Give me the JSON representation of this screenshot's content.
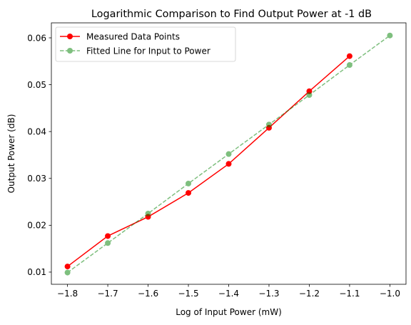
{
  "chart_data": {
    "type": "line",
    "title": "Logarithmic Comparison to Find Output Power at -1 dB",
    "xlabel": "Log of Input Power (mW)",
    "ylabel": "Output Power (dB)",
    "xlim": [
      -1.84,
      -0.96
    ],
    "ylim": [
      0.0074,
      0.0632
    ],
    "xticks": [
      -1.8,
      -1.7,
      -1.6,
      -1.5,
      -1.4,
      -1.3,
      -1.2,
      -1.1,
      -1.0
    ],
    "xtick_labels": [
      "−1.8",
      "−1.7",
      "−1.6",
      "−1.5",
      "−1.4",
      "−1.3",
      "−1.2",
      "−1.1",
      "−1.0"
    ],
    "yticks": [
      0.01,
      0.02,
      0.03,
      0.04,
      0.05,
      0.06
    ],
    "ytick_labels": [
      "0.01",
      "0.02",
      "0.03",
      "0.04",
      "0.05",
      "0.06"
    ],
    "grid": false,
    "legend_position": "top-left",
    "series": [
      {
        "name": "Measured Data Points",
        "color": "#ff0000",
        "line_style": "solid",
        "marker": "circle",
        "opacity": 1,
        "x": [
          -1.8,
          -1.7,
          -1.6,
          -1.5,
          -1.4,
          -1.3,
          -1.2,
          -1.1
        ],
        "y": [
          0.0112,
          0.0177,
          0.0218,
          0.0269,
          0.0331,
          0.0408,
          0.0486,
          0.0561
        ]
      },
      {
        "name": "Fitted Line for Input to Power",
        "color": "#008000",
        "line_style": "dashed",
        "marker": "circle",
        "opacity": 0.5,
        "x": [
          -1.8,
          -1.7,
          -1.6,
          -1.5,
          -1.4,
          -1.3,
          -1.2,
          -1.1,
          -1.0
        ],
        "y": [
          0.0099,
          0.0162,
          0.0225,
          0.0289,
          0.0352,
          0.0415,
          0.0478,
          0.0542,
          0.0605
        ]
      }
    ]
  }
}
